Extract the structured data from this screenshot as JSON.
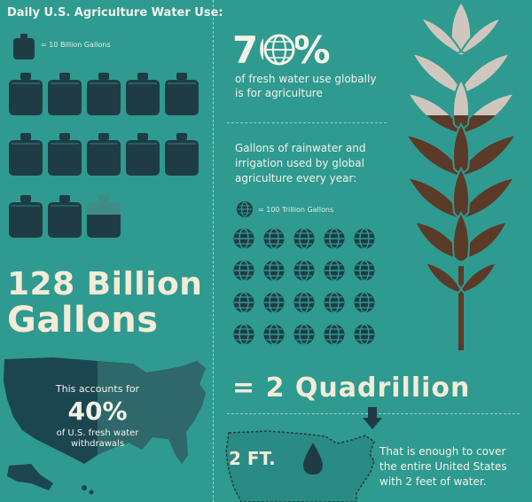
{
  "left": {
    "title": "Daily U.S. Agriculture Water Use:",
    "jug_legend": "= 10 Billion Gallons",
    "total_line1": "128 Billion",
    "total_line2": "Gallons",
    "map_text_top": "This accounts for",
    "map_percent": "40%",
    "map_text_bottom1": "of U.S. fresh water",
    "map_text_bottom2": "withdrawals"
  },
  "mid": {
    "percent_number": "70",
    "percent_sign": "%",
    "percent_text1": "of fresh water use globally",
    "percent_text2": "is for agriculture",
    "rain_text1": "Gallons of rainwater and",
    "rain_text2": "irrigation used by global",
    "rain_text3": "agriculture every year:",
    "globe_legend": "= 100 Trillion Gallons",
    "equals_text": "= 2 Quadrillion",
    "feet_label": "2 FT.",
    "enough_text1": "That is enough to cover",
    "enough_text2": "the entire United States",
    "enough_text3": "with 2 feet of water."
  },
  "colors": {
    "background": "#2f9a90",
    "jug": "#1f3c45",
    "cream": "#f3ecd7",
    "wheat_top": "#cfc7bd",
    "wheat_bottom": "#5b3a27",
    "map_dark": "#1b4650"
  }
}
